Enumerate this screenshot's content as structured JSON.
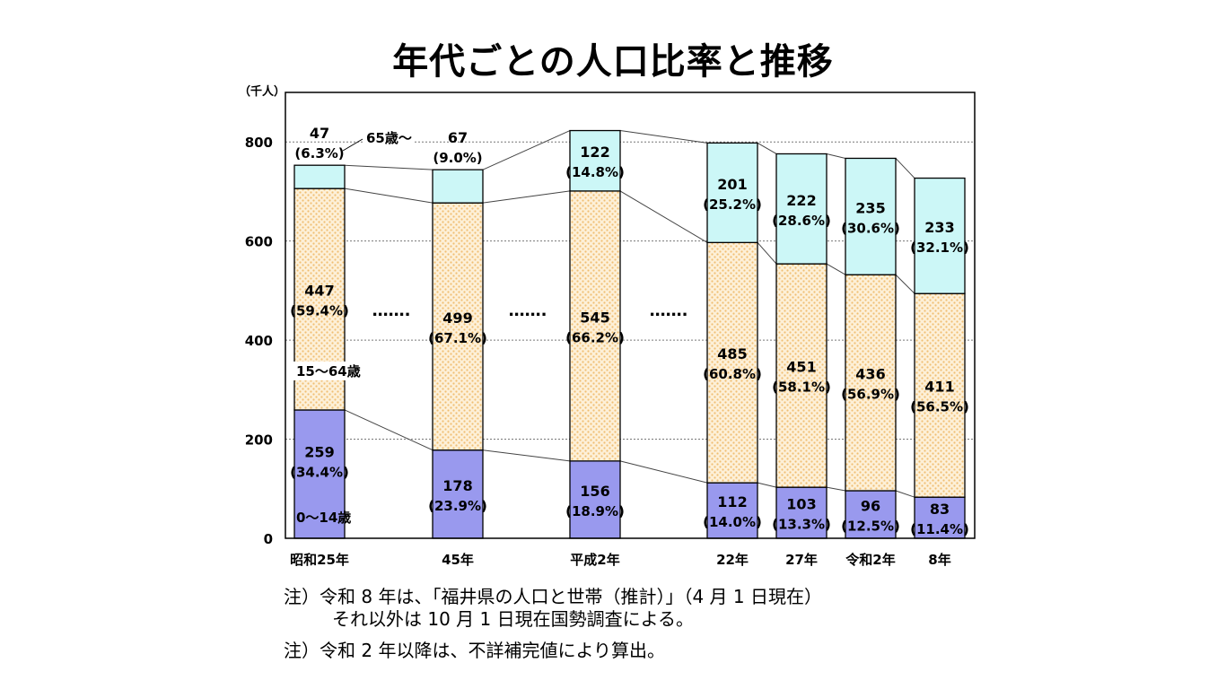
{
  "title": "年代ごとの人口比率と推移",
  "notes": [
    "注）令和 8 年は、「福井県の人口と世帯（推計）」（4 月 1 日現在）",
    "それ以外は 10 月 1 日現在国勢調査による。",
    "注）令和 2 年以降は、不詳補完値により算出。"
  ],
  "colors": {
    "elderly": "#ccf7f7",
    "working": "#fdf0d8",
    "working_dot": "#f0bf74",
    "young": "#9999ee",
    "grid": "#777777"
  },
  "chart_data": {
    "type": "bar",
    "stacked": true,
    "ylabel": "（千人）",
    "ylim": [
      0,
      900
    ],
    "yticks": [
      0,
      200,
      400,
      600,
      800
    ],
    "categories": [
      "昭和25年",
      "45年",
      "平成2年",
      "22年",
      "27年",
      "令和2年",
      "8年"
    ],
    "series": [
      {
        "name": "0～14歳",
        "values": [
          259,
          178,
          156,
          112,
          103,
          96,
          83
        ],
        "labels": [
          "(34.4%)",
          "(23.9%)",
          "(18.9%)",
          "(14.0%)",
          "(13.3%)",
          "(12.5%)",
          "(11.4%)"
        ]
      },
      {
        "name": "15～64歳",
        "values": [
          447,
          499,
          545,
          485,
          451,
          436,
          411
        ],
        "labels": [
          "(59.4%)",
          "(67.1%)",
          "(66.2%)",
          "(60.8%)",
          "(58.1%)",
          "(56.9%)",
          "(56.5%)"
        ]
      },
      {
        "name": "65歳～",
        "values": [
          47,
          67,
          122,
          201,
          222,
          235,
          233
        ],
        "labels": [
          "(6.3%)",
          "(9.0%)",
          "(14.8%)",
          "(25.2%)",
          "(28.6%)",
          "(30.6%)",
          "(32.1%)"
        ]
      }
    ],
    "gap_marker": "……."
  }
}
